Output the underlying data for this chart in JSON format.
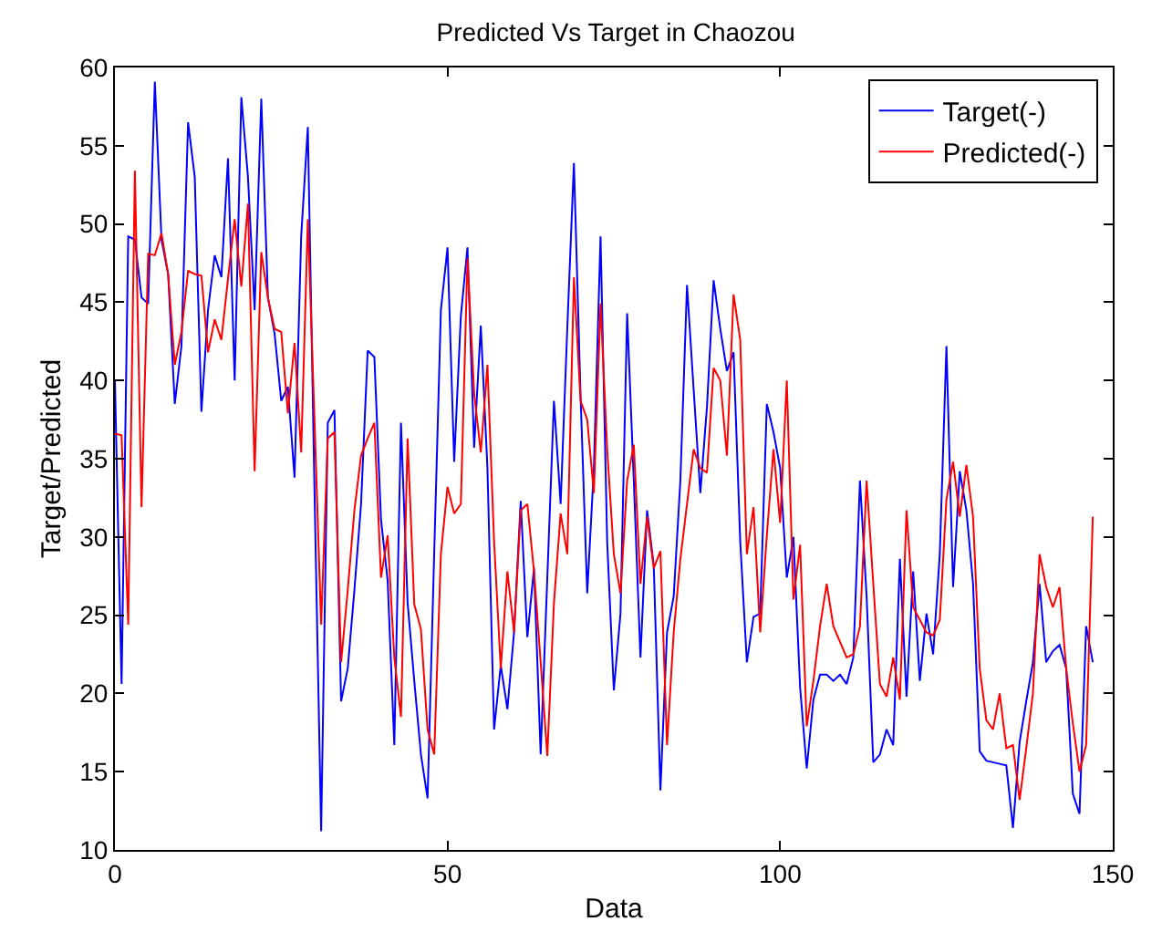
{
  "chart_data": {
    "type": "line",
    "title": "Predicted Vs Target in Chaozou",
    "xlabel": "Data",
    "ylabel": "Target/Predicted",
    "x": [
      0,
      1,
      2,
      3,
      4,
      5,
      6,
      7,
      8,
      9,
      10,
      11,
      12,
      13,
      14,
      15,
      16,
      17,
      18,
      19,
      20,
      21,
      22,
      23,
      24,
      25,
      26,
      27,
      28,
      29,
      30,
      31,
      32,
      33,
      34,
      35,
      36,
      37,
      38,
      39,
      40,
      41,
      42,
      43,
      44,
      45,
      46,
      47,
      48,
      49,
      50,
      51,
      52,
      53,
      54,
      55,
      56,
      57,
      58,
      59,
      60,
      61,
      62,
      63,
      64,
      65,
      66,
      67,
      68,
      69,
      70,
      71,
      72,
      73,
      74,
      75,
      76,
      77,
      78,
      79,
      80,
      81,
      82,
      83,
      84,
      85,
      86,
      87,
      88,
      89,
      90,
      91,
      92,
      93,
      94,
      95,
      96,
      97,
      98,
      99,
      100,
      101,
      102,
      103,
      104,
      105,
      106,
      107,
      108,
      109,
      110,
      111,
      112,
      113,
      114,
      115,
      116,
      117,
      118,
      119,
      120,
      121,
      122,
      123,
      124,
      125,
      126,
      127,
      128,
      129,
      130,
      131,
      132,
      133,
      134,
      135,
      136,
      137,
      138,
      139,
      140,
      141,
      142,
      143,
      144,
      145,
      146,
      147
    ],
    "series": [
      {
        "name": "Target(-)",
        "color": "#0000ff",
        "values": [
          40,
          20.6,
          49.2,
          49,
          45.3,
          44.9,
          59.1,
          49,
          46.8,
          38.5,
          42.2,
          56.5,
          53,
          38,
          44.5,
          48,
          46.6,
          54.2,
          40,
          58.1,
          53,
          44.5,
          58,
          45.3,
          43,
          38.7,
          39.6,
          33.8,
          49.2,
          56.2,
          33,
          11.2,
          37.3,
          38.1,
          19.5,
          21.6,
          26.6,
          32.1,
          41.9,
          41.5,
          31.1,
          27.2,
          16.7,
          37.3,
          25.8,
          20.8,
          16.1,
          13.3,
          29,
          44.5,
          48.5,
          34.8,
          44.1,
          48.5,
          35.7,
          43.5,
          34.4,
          17.7,
          21.8,
          19,
          23.9,
          32.3,
          23.6,
          28,
          16.1,
          27.4,
          38.7,
          32.1,
          43.3,
          53.9,
          39,
          26.4,
          34.4,
          49.2,
          29.7,
          20.2,
          25.1,
          44.3,
          33.6,
          22.3,
          31.7,
          28.2,
          13.8,
          23.9,
          26.2,
          33.6,
          46.1,
          39.4,
          32.8,
          38.3,
          46.4,
          43.3,
          40.6,
          41.8,
          29.7,
          22,
          24.9,
          25.1,
          38.5,
          36.7,
          34.4,
          27.4,
          30,
          20.4,
          15.2,
          19.6,
          21.2,
          21.2,
          20.8,
          21.2,
          20.6,
          22.3,
          33.6,
          26.2,
          15.6,
          16.1,
          17.7,
          16.7,
          28.6,
          19.8,
          27.8,
          20.8,
          25.1,
          22.5,
          28.9,
          42.2,
          26.8,
          34.2,
          31.7,
          27,
          16.3,
          15.7,
          15.6,
          15.5,
          15.4,
          11.4,
          16.9,
          19.5,
          22,
          27,
          22,
          22.7,
          23.1,
          21.6,
          13.6,
          12.3,
          24.3,
          22
        ]
      },
      {
        "name": "Predicted(-)",
        "color": "#ff0000",
        "values": [
          36.6,
          36.5,
          24.4,
          53.4,
          31.9,
          48.1,
          48,
          49.4,
          46.8,
          41,
          43.1,
          47,
          46.8,
          46.7,
          41.8,
          43.9,
          42.6,
          46.5,
          50.3,
          46,
          51.3,
          34.2,
          48.2,
          45.3,
          43.3,
          43.1,
          37.9,
          42.4,
          35.4,
          50.3,
          37.5,
          24.4,
          36.3,
          36.7,
          22,
          26.6,
          31.7,
          35.2,
          36.3,
          37.3,
          27.4,
          30.1,
          22.3,
          18.5,
          36.3,
          25.7,
          24.1,
          17.7,
          16.1,
          28.9,
          33.2,
          31.5,
          32.1,
          47.8,
          39.2,
          35.4,
          41,
          29.7,
          21.6,
          27.8,
          23.9,
          31.7,
          32.1,
          27.8,
          22,
          16,
          25.8,
          31.5,
          28.9,
          46.6,
          38.7,
          37.5,
          32.8,
          44.9,
          35.6,
          28.9,
          26.4,
          33.6,
          35.9,
          27,
          31.3,
          28,
          29.1,
          16.7,
          23.9,
          28.6,
          32.1,
          35.6,
          34.4,
          34.1,
          40.8,
          40,
          35.2,
          45.5,
          42.6,
          28.9,
          31.9,
          23.9,
          30.1,
          35.6,
          30.9,
          40,
          26,
          29.5,
          17.9,
          20.8,
          24.3,
          27,
          24.3,
          23.3,
          22.3,
          22.5,
          24.3,
          33.6,
          27,
          20.6,
          19.8,
          22.3,
          19.6,
          31.7,
          25.5,
          24.7,
          23.9,
          23.7,
          24.7,
          32.4,
          34.8,
          31.3,
          34.6,
          31.3,
          21.6,
          18.3,
          17.7,
          20,
          16.5,
          16.7,
          13.2,
          16.5,
          20,
          28.9,
          26.8,
          25.5,
          26.8,
          21.6,
          18.1,
          15,
          16.7,
          31.3
        ]
      }
    ],
    "xlim": [
      0,
      150
    ],
    "xticks": [
      0,
      50,
      100,
      150
    ],
    "ylim": [
      10,
      60
    ],
    "yticks": [
      10,
      15,
      20,
      25,
      30,
      35,
      40,
      45,
      50,
      55,
      60
    ],
    "grid": false,
    "legend": "top right",
    "marker": "none",
    "line_style": "solid"
  }
}
